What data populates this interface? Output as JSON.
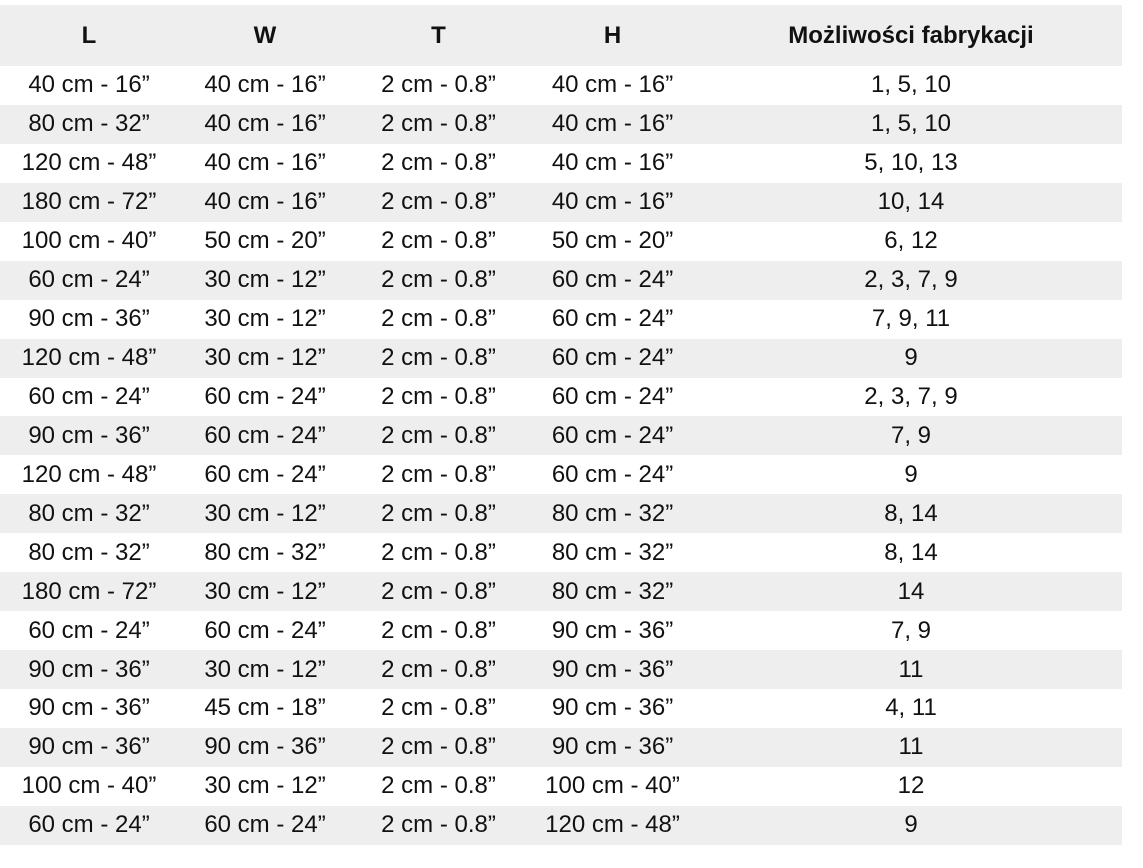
{
  "table": {
    "headers": [
      "L",
      "W",
      "T",
      "H",
      "Możliwości fabrykacji"
    ],
    "rows": [
      [
        "40 cm - 16”",
        "40 cm - 16”",
        "2 cm - 0.8”",
        "40 cm - 16”",
        "1, 5, 10"
      ],
      [
        "80 cm - 32”",
        "40 cm - 16”",
        "2 cm - 0.8”",
        "40 cm - 16”",
        "1, 5, 10"
      ],
      [
        "120 cm - 48”",
        "40 cm - 16”",
        "2 cm - 0.8”",
        "40 cm - 16”",
        "5, 10, 13"
      ],
      [
        "180 cm - 72”",
        "40 cm - 16”",
        "2 cm - 0.8”",
        "40 cm - 16”",
        "10, 14"
      ],
      [
        "100 cm - 40”",
        "50 cm - 20”",
        "2 cm - 0.8”",
        "50 cm - 20”",
        "6, 12"
      ],
      [
        "60 cm - 24”",
        "30 cm - 12”",
        "2 cm - 0.8”",
        "60 cm - 24”",
        "2, 3, 7, 9"
      ],
      [
        "90 cm - 36”",
        "30 cm - 12”",
        "2 cm - 0.8”",
        "60 cm - 24”",
        "7, 9, 11"
      ],
      [
        "120 cm - 48”",
        "30 cm - 12”",
        "2 cm - 0.8”",
        "60 cm - 24”",
        "9"
      ],
      [
        "60 cm - 24”",
        "60 cm - 24”",
        "2 cm - 0.8”",
        "60 cm - 24”",
        "2, 3, 7, 9"
      ],
      [
        "90 cm - 36”",
        "60 cm - 24”",
        "2 cm - 0.8”",
        "60 cm - 24”",
        "7, 9"
      ],
      [
        "120 cm - 48”",
        "60 cm - 24”",
        "2 cm - 0.8”",
        "60 cm - 24”",
        "9"
      ],
      [
        "80 cm - 32”",
        "30 cm - 12”",
        "2 cm - 0.8”",
        "80 cm - 32”",
        "8, 14"
      ],
      [
        "80 cm - 32”",
        "80 cm - 32”",
        "2 cm - 0.8”",
        "80 cm - 32”",
        "8, 14"
      ],
      [
        "180 cm - 72”",
        "30 cm - 12”",
        "2 cm - 0.8”",
        "80 cm - 32”",
        "14"
      ],
      [
        "60 cm - 24”",
        "60 cm - 24”",
        "2 cm - 0.8”",
        "90 cm - 36”",
        "7, 9"
      ],
      [
        "90 cm - 36”",
        "30 cm - 12”",
        "2 cm - 0.8”",
        "90 cm - 36”",
        "11"
      ],
      [
        "90 cm - 36”",
        "45 cm - 18”",
        "2 cm - 0.8”",
        "90 cm - 36”",
        "4, 11"
      ],
      [
        "90 cm - 36”",
        "90 cm - 36”",
        "2 cm - 0.8”",
        "90 cm - 36”",
        "11"
      ],
      [
        "100 cm - 40”",
        "30 cm - 12”",
        "2 cm - 0.8”",
        "100 cm - 40”",
        "12"
      ],
      [
        "60 cm - 24”",
        "60 cm - 24”",
        "2 cm - 0.8”",
        "120 cm - 48”",
        "9"
      ]
    ],
    "colors": {
      "stripe": "#eeeeee",
      "background": "#ffffff",
      "text": "#111111"
    }
  }
}
